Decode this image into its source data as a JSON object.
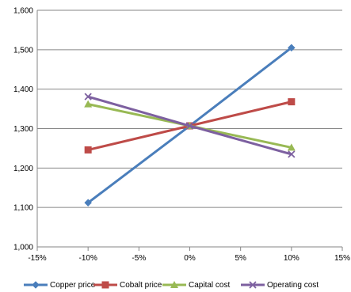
{
  "chart_data": {
    "type": "line",
    "title": "",
    "xlabel": "",
    "ylabel": "",
    "x_ticks": [
      "-15%",
      "-10%",
      "-5%",
      "0%",
      "5%",
      "10%",
      "15%"
    ],
    "x_tick_values": [
      -15,
      -10,
      -5,
      0,
      5,
      10,
      15
    ],
    "y_ticks": [
      "1,000",
      "1,100",
      "1,200",
      "1,300",
      "1,400",
      "1,500",
      "1,600"
    ],
    "y_tick_values": [
      1000,
      1100,
      1200,
      1300,
      1400,
      1500,
      1600
    ],
    "xlim": [
      -15,
      15
    ],
    "ylim": [
      1000,
      1600
    ],
    "grid": "horizontal",
    "legend_position": "bottom",
    "x": [
      -10,
      0,
      10
    ],
    "series": [
      {
        "name": "Copper price",
        "color": "#4a7ebb",
        "marker": "diamond",
        "values": [
          1112,
          1307,
          1505
        ]
      },
      {
        "name": "Cobalt price",
        "color": "#be4b48",
        "marker": "square",
        "values": [
          1246,
          1307,
          1368
        ]
      },
      {
        "name": "Capital cost",
        "color": "#98b954",
        "marker": "triangle",
        "values": [
          1362,
          1307,
          1252
        ]
      },
      {
        "name": "Operating cost",
        "color": "#7d60a0",
        "marker": "x",
        "values": [
          1381,
          1307,
          1235
        ]
      }
    ]
  }
}
